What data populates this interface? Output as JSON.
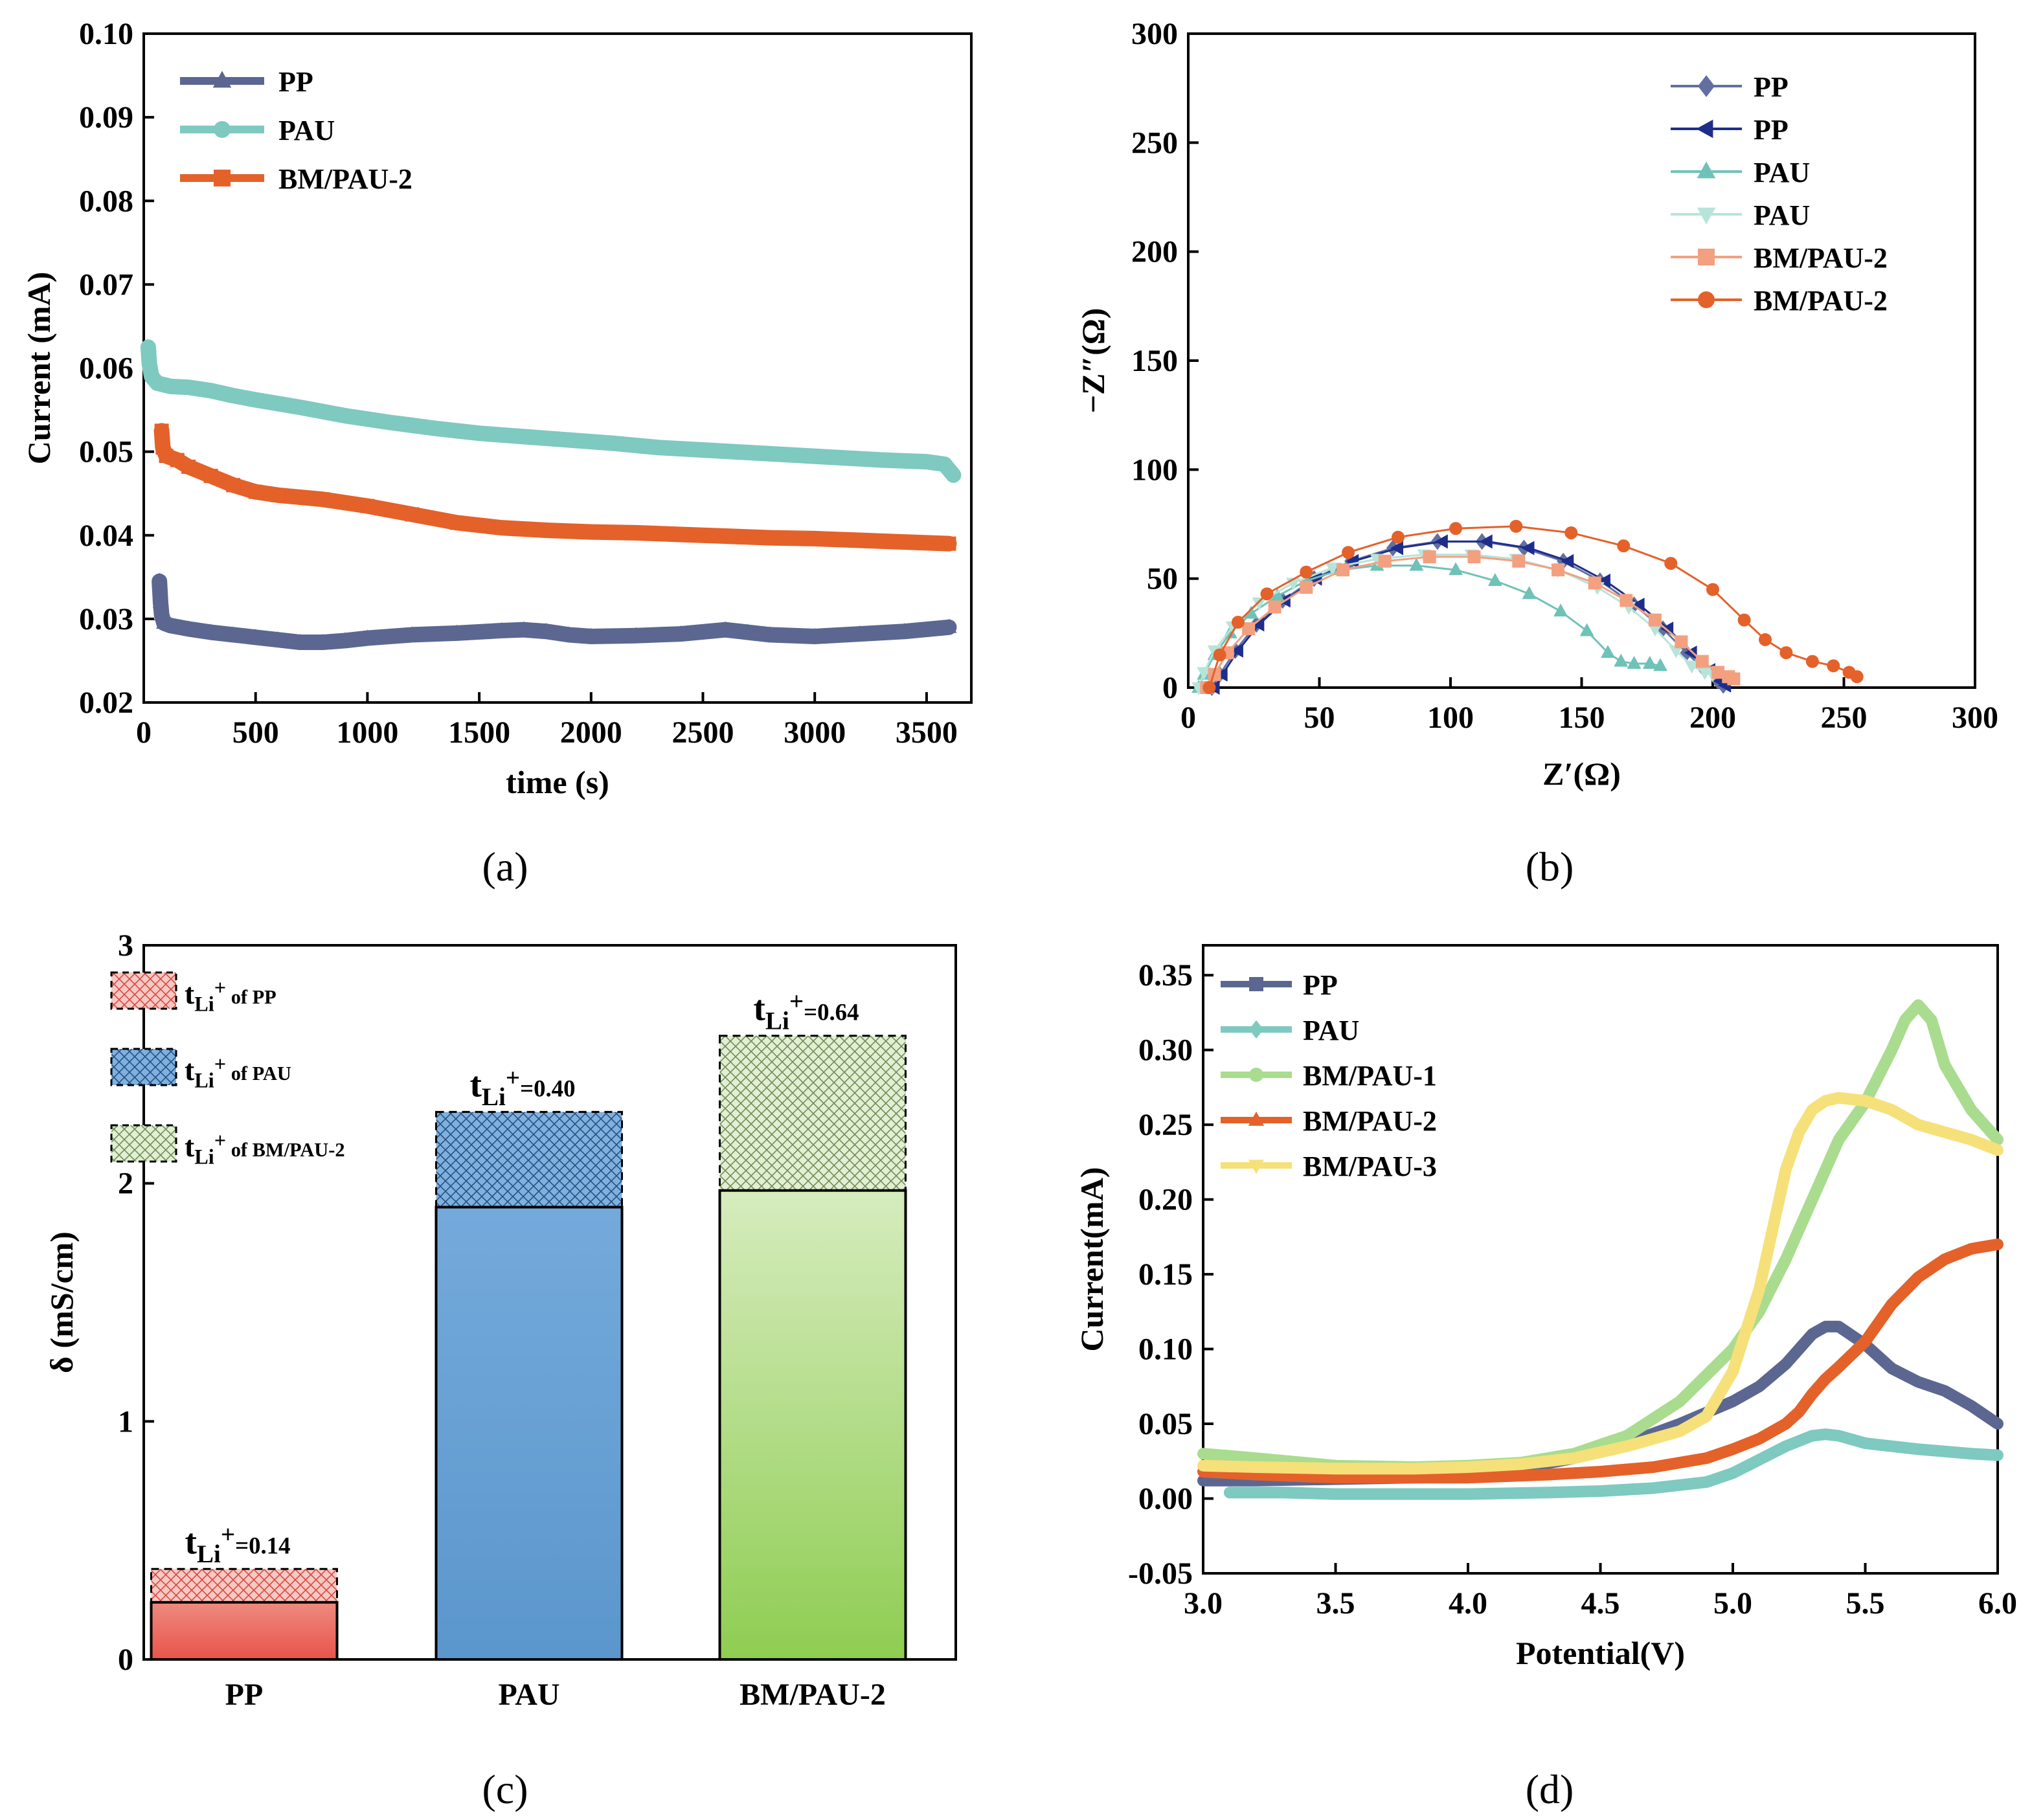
{
  "panels": [
    {
      "label": "(a)"
    },
    {
      "label": "(b)"
    },
    {
      "label": "(c)"
    },
    {
      "label": "(d)"
    }
  ],
  "chart_data": [
    {
      "panel": "(a)",
      "type": "scatter",
      "xlabel": "time (s)",
      "ylabel": "Current (mA)",
      "xlim": [
        0,
        3700
      ],
      "ylim": [
        0.02,
        0.1
      ],
      "xticks": [
        0,
        500,
        1000,
        1500,
        2000,
        2500,
        3000,
        3500
      ],
      "yticks": [
        0.02,
        0.03,
        0.04,
        0.05,
        0.06,
        0.07,
        0.08,
        0.09,
        0.1
      ],
      "yticklabels": [
        "0.02",
        "0.03",
        "0.04",
        "0.05",
        "0.06",
        "0.07",
        "0.08",
        "0.09",
        "0.10"
      ],
      "legend": "top-left",
      "series": [
        {
          "name": "PP",
          "color": "#5b6791",
          "marker": "triangle",
          "x": [
            70,
            75,
            80,
            90,
            120,
            200,
            300,
            400,
            500,
            600,
            700,
            800,
            900,
            1000,
            1200,
            1400,
            1600,
            1700,
            1800,
            1900,
            2000,
            2200,
            2400,
            2600,
            2700,
            2800,
            3000,
            3200,
            3400,
            3600
          ],
          "y": [
            0.0345,
            0.032,
            0.0305,
            0.0295,
            0.0292,
            0.0288,
            0.0284,
            0.0281,
            0.0278,
            0.0275,
            0.0272,
            0.0272,
            0.0274,
            0.0277,
            0.0281,
            0.0283,
            0.0286,
            0.0287,
            0.0285,
            0.0281,
            0.0279,
            0.028,
            0.0282,
            0.0287,
            0.0284,
            0.0281,
            0.0279,
            0.0282,
            0.0285,
            0.029
          ]
        },
        {
          "name": "PAU",
          "color": "#7ec9c0",
          "marker": "circle",
          "x": [
            20,
            25,
            35,
            60,
            120,
            200,
            300,
            400,
            500,
            700,
            900,
            1100,
            1300,
            1500,
            1700,
            1900,
            2100,
            2300,
            2500,
            2700,
            2900,
            3100,
            3300,
            3500,
            3580,
            3620
          ],
          "y": [
            0.0625,
            0.0605,
            0.059,
            0.0582,
            0.0578,
            0.0577,
            0.0573,
            0.0567,
            0.0562,
            0.0553,
            0.0543,
            0.0535,
            0.0528,
            0.0522,
            0.0518,
            0.0514,
            0.051,
            0.0505,
            0.0502,
            0.0499,
            0.0496,
            0.0493,
            0.049,
            0.0488,
            0.0485,
            0.0472
          ]
        },
        {
          "name": "BM/PAU-2",
          "color": "#e4612a",
          "marker": "square",
          "x": [
            80,
            85,
            100,
            150,
            200,
            300,
            400,
            500,
            600,
            800,
            1000,
            1200,
            1400,
            1600,
            1800,
            2000,
            2200,
            2400,
            2600,
            2800,
            3000,
            3200,
            3400,
            3600
          ],
          "y": [
            0.0525,
            0.0505,
            0.0495,
            0.049,
            0.0482,
            0.0471,
            0.046,
            0.0452,
            0.0448,
            0.0443,
            0.0435,
            0.0425,
            0.0415,
            0.0409,
            0.0406,
            0.0404,
            0.0403,
            0.0401,
            0.0399,
            0.0397,
            0.0396,
            0.0394,
            0.0392,
            0.039
          ]
        }
      ]
    },
    {
      "panel": "(b)",
      "type": "scatter",
      "xlabel": "Z′(Ω)",
      "ylabel": "−Z″(Ω)",
      "xlim": [
        0,
        300
      ],
      "ylim": [
        0,
        300
      ],
      "xticks": [
        0,
        50,
        100,
        150,
        200,
        250,
        300
      ],
      "yticks": [
        0,
        50,
        100,
        150,
        200,
        250,
        300
      ],
      "legend": "top-right",
      "series": [
        {
          "name": "PP",
          "color": "#6170a0",
          "marker": "diamond",
          "x": [
            9,
            12,
            18,
            26,
            36,
            48,
            62,
            78,
            95,
            112,
            128,
            143,
            157,
            170,
            181,
            190,
            197,
            202,
            204
          ],
          "y": [
            0,
            6,
            17,
            29,
            40,
            50,
            58,
            64,
            67,
            67,
            64,
            58,
            49,
            38,
            27,
            16,
            8,
            3,
            1
          ]
        },
        {
          "name": "PP",
          "color": "#1e2d8c",
          "marker": "triangle-left",
          "x": [
            10,
            13,
            19,
            27,
            37,
            49,
            63,
            80,
            97,
            114,
            130,
            145,
            159,
            172,
            183,
            192,
            199,
            203,
            205
          ],
          "y": [
            0,
            6,
            17,
            29,
            40,
            50,
            58,
            64,
            67,
            67,
            64,
            58,
            49,
            38,
            27,
            16,
            8,
            3,
            1
          ]
        },
        {
          "name": "PAU",
          "color": "#6fc2b7",
          "marker": "triangle",
          "x": [
            4,
            6,
            10,
            16,
            24,
            34,
            45,
            58,
            72,
            87,
            102,
            117,
            130,
            142,
            152,
            160,
            165,
            170,
            176,
            180
          ],
          "y": [
            0,
            6,
            15,
            25,
            34,
            42,
            49,
            54,
            56,
            56,
            54,
            49,
            43,
            35,
            26,
            16,
            12,
            11,
            11,
            10
          ]
        },
        {
          "name": "PAU",
          "color": "#b7e4d9",
          "marker": "triangle-down",
          "x": [
            4,
            6,
            10,
            17,
            27,
            40,
            55,
            72,
            90,
            108,
            125,
            141,
            156,
            168,
            178,
            186,
            192,
            197,
            200
          ],
          "y": [
            0,
            7,
            17,
            28,
            39,
            48,
            55,
            59,
            61,
            61,
            59,
            54,
            46,
            37,
            27,
            17,
            10,
            7,
            6
          ]
        },
        {
          "name": "BM/PAU-2",
          "color": "#f3a080",
          "marker": "square",
          "x": [
            7,
            10,
            15,
            23,
            33,
            45,
            59,
            75,
            92,
            109,
            126,
            141,
            155,
            167,
            178,
            188,
            196,
            202,
            206,
            208
          ],
          "y": [
            0,
            6,
            16,
            27,
            37,
            46,
            54,
            58,
            60,
            60,
            58,
            54,
            48,
            40,
            31,
            21,
            12,
            7,
            5,
            4
          ]
        },
        {
          "name": "BM/PAU-2",
          "color": "#e4612a",
          "marker": "circle",
          "x": [
            8,
            12,
            19,
            30,
            45,
            61,
            80,
            102,
            125,
            146,
            166,
            184,
            200,
            212,
            220,
            228,
            238,
            246,
            252,
            255
          ],
          "y": [
            0,
            15,
            30,
            43,
            53,
            62,
            69,
            73,
            74,
            71,
            65,
            57,
            45,
            31,
            22,
            16,
            12,
            10,
            7,
            5
          ]
        }
      ]
    },
    {
      "panel": "(c)",
      "type": "bar",
      "ylabel": "δ (mS/cm)",
      "ylim": [
        0,
        3
      ],
      "yticks": [
        0,
        1,
        2,
        3
      ],
      "categories": [
        "PP",
        "PAU",
        "BM/PAU-2"
      ],
      "bar_colors": [
        "#e8544a",
        "#5e9bd1",
        "#96d15a"
      ],
      "hatch_colors": [
        "#f2aaa4",
        "#3a71b5",
        "#c9e5b0"
      ],
      "values": [
        0.24,
        1.9,
        1.97
      ],
      "totals": [
        0.38,
        2.3,
        2.62
      ],
      "legend": "top-left",
      "legend_entries": [
        {
          "main": "t",
          "sub": "Li",
          "sup": "+",
          "rest": " of PP"
        },
        {
          "main": "t",
          "sub": "Li",
          "sup": "+",
          "rest": " of PAU"
        },
        {
          "main": "t",
          "sub": "Li",
          "sup": "+",
          "rest": " of BM/PAU-2"
        }
      ],
      "annotations": [
        {
          "main": "t",
          "sub": "Li",
          "sup": "+",
          "rest": "=0.14"
        },
        {
          "main": "t",
          "sub": "Li",
          "sup": "+",
          "rest": "=0.40"
        },
        {
          "main": "t",
          "sub": "Li",
          "sup": "+",
          "rest": "=0.64"
        }
      ]
    },
    {
      "panel": "(d)",
      "type": "line",
      "xlabel": "Potential(V)",
      "ylabel": "Current(mA)",
      "xlim": [
        3.0,
        6.0
      ],
      "ylim": [
        -0.05,
        0.37
      ],
      "xticks": [
        3.0,
        3.5,
        4.0,
        4.5,
        5.0,
        5.5,
        6.0
      ],
      "xticklabels": [
        "3.0",
        "3.5",
        "4.0",
        "4.5",
        "5.0",
        "5.5",
        "6.0"
      ],
      "yticks": [
        -0.05,
        0.0,
        0.05,
        0.1,
        0.15,
        0.2,
        0.25,
        0.3,
        0.35
      ],
      "yticklabels": [
        "-0.05",
        "0.00",
        "0.05",
        "0.10",
        "0.15",
        "0.20",
        "0.25",
        "0.30",
        "0.35"
      ],
      "legend": "top-left",
      "series": [
        {
          "name": "PP",
          "color": "#5b6791",
          "marker": "square",
          "x": [
            3.0,
            3.2,
            3.5,
            3.8,
            4.0,
            4.2,
            4.4,
            4.6,
            4.8,
            5.0,
            5.1,
            5.2,
            5.3,
            5.35,
            5.4,
            5.5,
            5.6,
            5.7,
            5.8,
            5.9,
            6.0
          ],
          "y": [
            0.012,
            0.012,
            0.013,
            0.014,
            0.016,
            0.02,
            0.027,
            0.037,
            0.05,
            0.065,
            0.075,
            0.09,
            0.11,
            0.115,
            0.115,
            0.103,
            0.087,
            0.078,
            0.072,
            0.062,
            0.05
          ]
        },
        {
          "name": "PAU",
          "color": "#7ec9c0",
          "marker": "diamond",
          "x": [
            3.1,
            3.3,
            3.5,
            3.8,
            4.0,
            4.3,
            4.5,
            4.7,
            4.9,
            5.0,
            5.1,
            5.2,
            5.3,
            5.35,
            5.4,
            5.5,
            5.7,
            5.9,
            6.0
          ],
          "y": [
            0.004,
            0.004,
            0.003,
            0.003,
            0.003,
            0.004,
            0.005,
            0.007,
            0.011,
            0.017,
            0.026,
            0.035,
            0.042,
            0.043,
            0.042,
            0.037,
            0.033,
            0.03,
            0.029
          ]
        },
        {
          "name": "BM/PAU-1",
          "color": "#a9dc8e",
          "marker": "circle",
          "x": [
            3.0,
            3.2,
            3.5,
            3.8,
            4.0,
            4.2,
            4.4,
            4.6,
            4.8,
            5.0,
            5.1,
            5.2,
            5.3,
            5.4,
            5.5,
            5.6,
            5.65,
            5.7,
            5.75,
            5.8,
            5.9,
            6.0
          ],
          "y": [
            0.03,
            0.027,
            0.022,
            0.021,
            0.022,
            0.024,
            0.03,
            0.042,
            0.065,
            0.1,
            0.125,
            0.16,
            0.2,
            0.24,
            0.265,
            0.3,
            0.32,
            0.33,
            0.32,
            0.29,
            0.26,
            0.24
          ]
        },
        {
          "name": "BM/PAU-2",
          "color": "#e4612a",
          "marker": "triangle",
          "x": [
            3.0,
            3.2,
            3.5,
            3.8,
            4.0,
            4.3,
            4.5,
            4.7,
            4.9,
            5.0,
            5.1,
            5.2,
            5.25,
            5.3,
            5.35,
            5.4,
            5.5,
            5.6,
            5.7,
            5.8,
            5.9,
            6.0
          ],
          "y": [
            0.018,
            0.016,
            0.014,
            0.014,
            0.014,
            0.016,
            0.018,
            0.021,
            0.027,
            0.033,
            0.04,
            0.05,
            0.058,
            0.07,
            0.08,
            0.088,
            0.105,
            0.13,
            0.148,
            0.16,
            0.167,
            0.17
          ]
        },
        {
          "name": "BM/PAU-3",
          "color": "#f6e07a",
          "marker": "triangle-down",
          "x": [
            3.0,
            3.2,
            3.5,
            3.8,
            4.0,
            4.2,
            4.4,
            4.6,
            4.8,
            4.9,
            5.0,
            5.1,
            5.15,
            5.2,
            5.25,
            5.3,
            5.35,
            5.4,
            5.5,
            5.6,
            5.7,
            5.8,
            5.9,
            6.0
          ],
          "y": [
            0.022,
            0.021,
            0.02,
            0.02,
            0.021,
            0.023,
            0.027,
            0.035,
            0.045,
            0.055,
            0.085,
            0.14,
            0.18,
            0.22,
            0.245,
            0.26,
            0.266,
            0.268,
            0.266,
            0.26,
            0.25,
            0.245,
            0.24,
            0.233
          ]
        }
      ]
    }
  ]
}
